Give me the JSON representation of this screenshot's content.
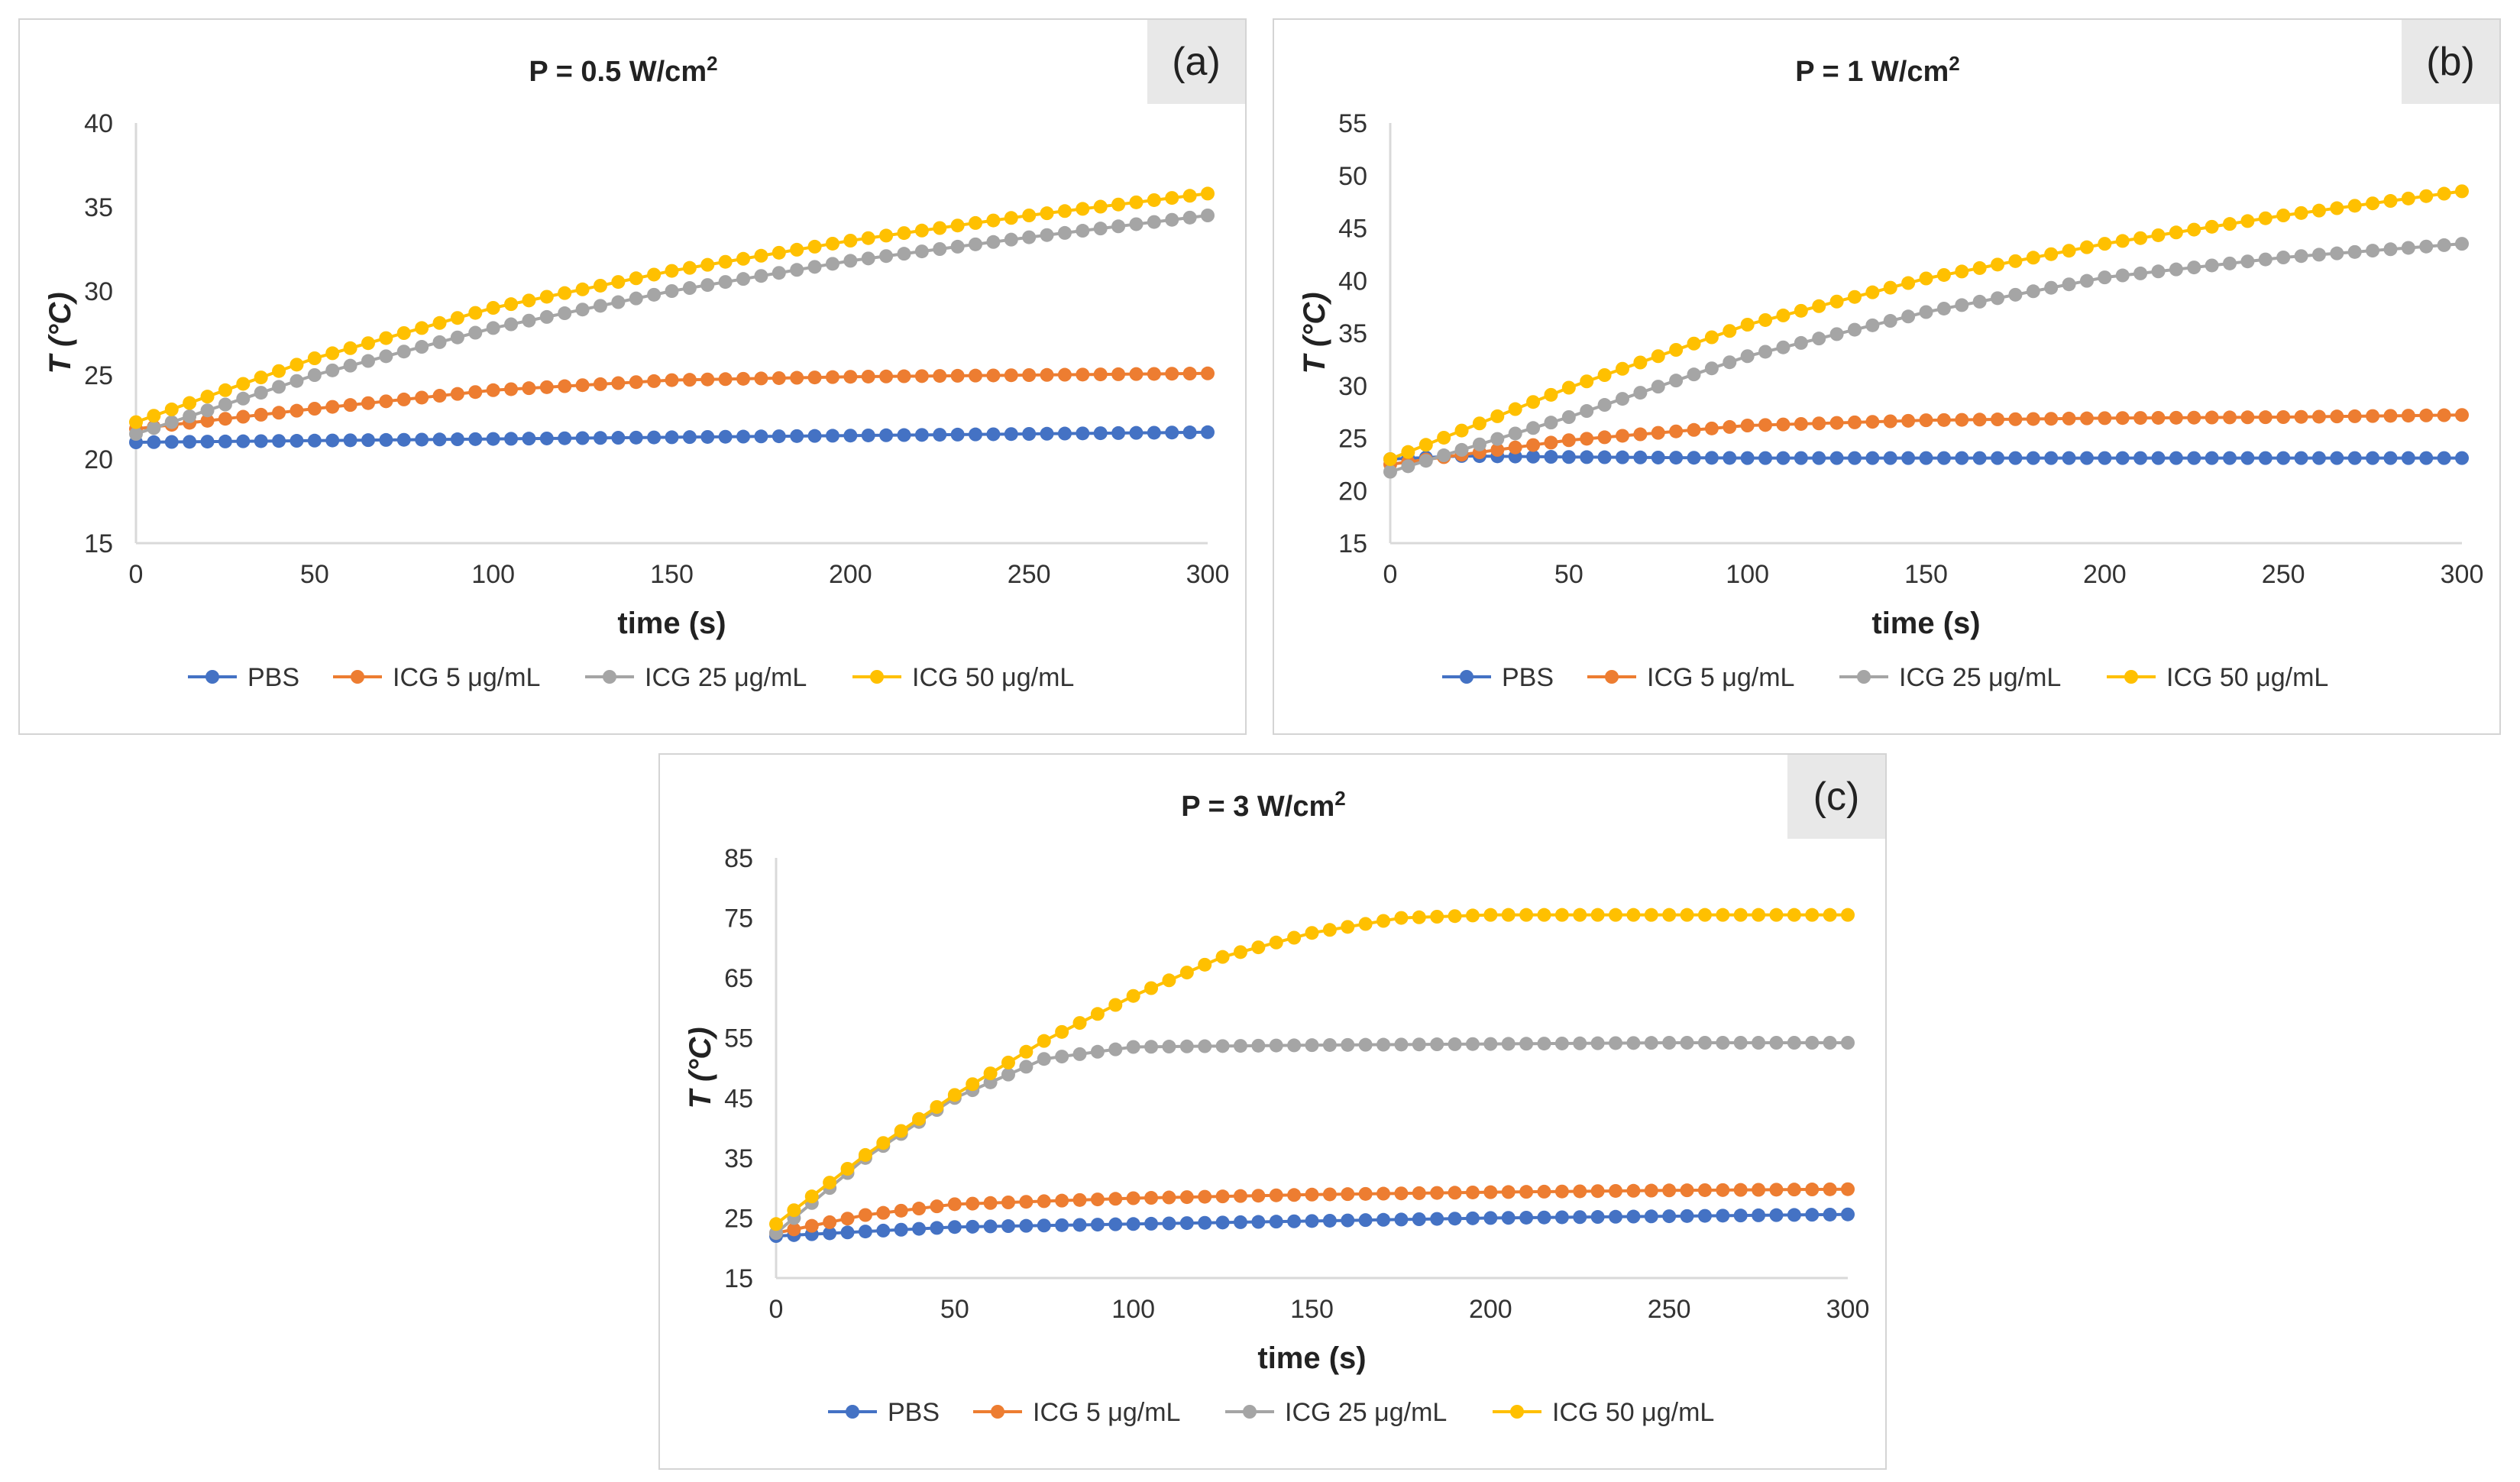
{
  "colors": {
    "PBS": "#4472c4",
    "ICG5": "#ed7d31",
    "ICG25": "#a5a5a5",
    "ICG50": "#ffc000",
    "axis": "#d9d9d9"
  },
  "legend": [
    {
      "key": "PBS",
      "label": "PBS"
    },
    {
      "key": "ICG5",
      "label": "ICG 5 μg/mL"
    },
    {
      "key": "ICG25",
      "label": "ICG 25 μg/mL"
    },
    {
      "key": "ICG50",
      "label": "ICG 50 μg/mL"
    }
  ],
  "chart_data": [
    {
      "type": "scatter",
      "panel_label": "(a)",
      "title_prefix": "P = 0.5 W/cm",
      "title_sup": "2",
      "xlabel": "time (s)",
      "ylabel": "T (°C)",
      "xlim": [
        0,
        300
      ],
      "ylim": [
        15,
        40
      ],
      "xticks": [
        0,
        50,
        100,
        150,
        200,
        250,
        300
      ],
      "yticks": [
        15,
        20,
        25,
        30,
        35,
        40
      ],
      "series": [
        {
          "key": "PBS",
          "name": "PBS",
          "x": [
            0,
            50,
            100,
            150,
            200,
            250,
            300
          ],
          "y": [
            21.0,
            21.1,
            21.2,
            21.3,
            21.4,
            21.5,
            21.6
          ]
        },
        {
          "key": "ICG5",
          "name": "ICG 5 μg/mL",
          "x": [
            0,
            50,
            100,
            150,
            200,
            250,
            300
          ],
          "y": [
            21.8,
            23.0,
            24.1,
            24.7,
            24.9,
            25.0,
            25.1
          ]
        },
        {
          "key": "ICG25",
          "name": "ICG 25 μg/mL",
          "x": [
            0,
            50,
            100,
            150,
            200,
            250,
            300
          ],
          "y": [
            21.5,
            25.0,
            27.8,
            30.0,
            31.8,
            33.2,
            34.5
          ]
        },
        {
          "key": "ICG50",
          "name": "ICG 50 μg/mL",
          "x": [
            0,
            50,
            100,
            150,
            200,
            250,
            300
          ],
          "y": [
            22.2,
            26.0,
            29.0,
            31.2,
            33.0,
            34.5,
            35.8
          ]
        }
      ]
    },
    {
      "type": "scatter",
      "panel_label": "(b)",
      "title_prefix": "P = 1 W/cm",
      "title_sup": "2",
      "xlabel": "time (s)",
      "ylabel": "T (°C)",
      "xlim": [
        0,
        300
      ],
      "ylim": [
        15,
        55
      ],
      "xticks": [
        0,
        50,
        100,
        150,
        200,
        250,
        300
      ],
      "yticks": [
        15,
        20,
        25,
        30,
        35,
        40,
        45,
        50,
        55
      ],
      "series": [
        {
          "key": "PBS",
          "name": "PBS",
          "x": [
            0,
            20,
            50,
            100,
            150,
            200,
            250,
            300
          ],
          "y": [
            23.0,
            23.3,
            23.2,
            23.1,
            23.1,
            23.1,
            23.1,
            23.1
          ]
        },
        {
          "key": "ICG5",
          "name": "ICG 5 μg/mL",
          "x": [
            0,
            50,
            100,
            150,
            200,
            250,
            300
          ],
          "y": [
            22.5,
            24.8,
            26.2,
            26.7,
            26.9,
            27.0,
            27.2
          ]
        },
        {
          "key": "ICG25",
          "name": "ICG 25 μg/mL",
          "x": [
            0,
            50,
            100,
            150,
            200,
            250,
            300
          ],
          "y": [
            21.8,
            27.0,
            32.8,
            37.0,
            40.3,
            42.2,
            43.5
          ]
        },
        {
          "key": "ICG50",
          "name": "ICG 50 μg/mL",
          "x": [
            0,
            50,
            100,
            150,
            200,
            250,
            300
          ],
          "y": [
            23.0,
            29.8,
            35.8,
            40.2,
            43.5,
            46.2,
            48.5
          ]
        }
      ]
    },
    {
      "type": "scatter",
      "panel_label": "(c)",
      "title_prefix": "P = 3 W/cm",
      "title_sup": "2",
      "xlabel": "time (s)",
      "ylabel": "T (°C)",
      "xlim": [
        0,
        300
      ],
      "ylim": [
        15,
        85
      ],
      "xticks": [
        0,
        50,
        100,
        150,
        200,
        250,
        300
      ],
      "yticks": [
        15,
        25,
        35,
        45,
        55,
        65,
        75,
        85
      ],
      "series": [
        {
          "key": "PBS",
          "name": "PBS",
          "x": [
            0,
            50,
            100,
            150,
            200,
            250,
            300
          ],
          "y": [
            22.0,
            23.5,
            24.0,
            24.5,
            25.0,
            25.3,
            25.6
          ]
        },
        {
          "key": "ICG5",
          "name": "ICG 5 μg/mL",
          "x": [
            0,
            25,
            50,
            100,
            150,
            200,
            250,
            300
          ],
          "y": [
            22.5,
            25.5,
            27.3,
            28.3,
            28.9,
            29.3,
            29.6,
            29.8
          ]
        },
        {
          "key": "ICG25",
          "name": "ICG 25 μg/mL",
          "x": [
            0,
            25,
            50,
            75,
            100,
            150,
            200,
            250,
            300
          ],
          "y": [
            22.5,
            35.0,
            45.0,
            51.5,
            53.5,
            53.8,
            54.0,
            54.2,
            54.2
          ]
        },
        {
          "key": "ICG50",
          "name": "ICG 50 μg/mL",
          "x": [
            0,
            25,
            50,
            75,
            100,
            125,
            150,
            175,
            200,
            250,
            300
          ],
          "y": [
            24.0,
            35.5,
            45.5,
            54.5,
            62.0,
            68.5,
            72.5,
            75.0,
            75.5,
            75.5,
            75.5
          ]
        }
      ]
    }
  ]
}
